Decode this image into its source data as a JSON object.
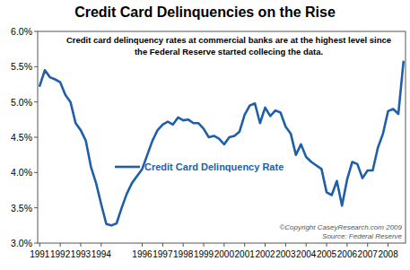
{
  "chart_data": {
    "type": "line",
    "title": "Credit Card Delinquencies on the Rise",
    "annotations": [
      "Credit card delinquency rates at commercial banks are at the highest level since",
      "the Federal Reserve started collecing the data."
    ],
    "source": [
      "©Copyright CaseyResearch.com 2009",
      "Source: Federal Reserve"
    ],
    "x": [
      1991.0,
      1991.25,
      1991.5,
      1991.75,
      1992.0,
      1992.25,
      1992.5,
      1992.75,
      1993.0,
      1993.25,
      1993.5,
      1993.75,
      1994.0,
      1994.25,
      1994.5,
      1994.75,
      1995.0,
      1995.25,
      1995.5,
      1995.75,
      1996.0,
      1996.25,
      1996.5,
      1996.75,
      1997.0,
      1997.25,
      1997.5,
      1997.75,
      1998.0,
      1998.25,
      1998.5,
      1998.75,
      1999.0,
      1999.25,
      1999.5,
      1999.75,
      2000.0,
      2000.25,
      2000.5,
      2000.75,
      2001.0,
      2001.25,
      2001.5,
      2001.75,
      2002.0,
      2002.25,
      2002.5,
      2002.75,
      2003.0,
      2003.25,
      2003.5,
      2003.75,
      2004.0,
      2004.25,
      2004.5,
      2004.75,
      2005.0,
      2005.25,
      2005.5,
      2005.75,
      2006.0,
      2006.25,
      2006.5,
      2006.75,
      2007.0,
      2007.25,
      2007.5,
      2007.75,
      2008.0,
      2008.25,
      2008.5,
      2008.75
    ],
    "series": [
      {
        "name": "Credit Card Delinquency Rate",
        "color": "#1f5fa8",
        "values": [
          5.23,
          5.45,
          5.35,
          5.32,
          5.28,
          5.1,
          5.0,
          4.7,
          4.6,
          4.45,
          4.08,
          3.85,
          3.55,
          3.27,
          3.25,
          3.28,
          3.5,
          3.7,
          3.85,
          3.95,
          4.05,
          4.25,
          4.45,
          4.6,
          4.68,
          4.72,
          4.68,
          4.78,
          4.74,
          4.75,
          4.7,
          4.7,
          4.62,
          4.5,
          4.52,
          4.48,
          4.4,
          4.5,
          4.52,
          4.58,
          4.82,
          4.95,
          4.98,
          4.7,
          4.92,
          4.8,
          4.88,
          4.85,
          4.65,
          4.55,
          4.25,
          4.4,
          4.22,
          4.15,
          4.1,
          4.05,
          3.72,
          3.68,
          3.88,
          3.53,
          3.9,
          4.15,
          4.12,
          3.92,
          4.03,
          4.03,
          4.35,
          4.55,
          4.87,
          4.9,
          4.83,
          5.57
        ]
      }
    ],
    "xlim": [
      1990.9,
      2008.85
    ],
    "xticks": [
      1991,
      1992,
      1993,
      1994,
      1996,
      1997,
      1998,
      1999,
      2000,
      2001,
      2002,
      2003,
      2004,
      2005,
      2006,
      2007,
      2008
    ],
    "ylim": [
      3.0,
      6.0
    ],
    "yticks": [
      {
        "value": 3.0,
        "label": "3.0%"
      },
      {
        "value": 3.5,
        "label": "3.5%"
      },
      {
        "value": 4.0,
        "label": "4.0%"
      },
      {
        "value": 4.5,
        "label": "4.5%"
      },
      {
        "value": 5.0,
        "label": "5.0%"
      },
      {
        "value": 5.5,
        "label": "5.5%"
      },
      {
        "value": 6.0,
        "label": "6.0%"
      }
    ],
    "grid": false
  }
}
